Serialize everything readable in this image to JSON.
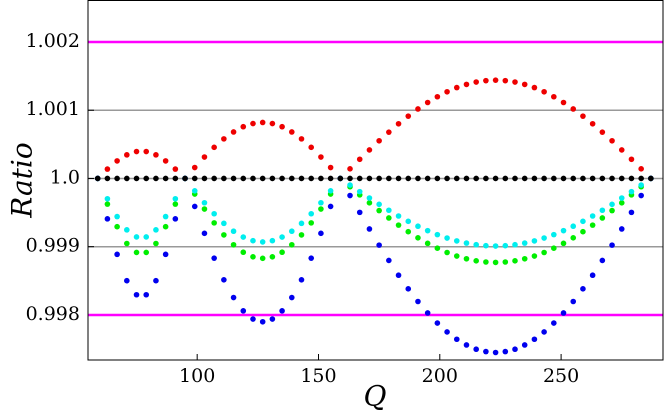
{
  "chart_data": {
    "type": "scatter",
    "xlabel": "Q",
    "ylabel": "Ratio",
    "xlim": [
      55,
      292
    ],
    "xticks": [
      100,
      150,
      200,
      250
    ],
    "ylim": [
      0.99734,
      1.0026
    ],
    "yticks": [
      1.002,
      1.001,
      {
        "value": 1,
        "label": "1.0"
      },
      0.999,
      0.998
    ],
    "grid": true,
    "grid_color": "#999999",
    "reference_lines": [
      {
        "value": 1.002,
        "color": "#ff00ff"
      },
      {
        "value": 0.998,
        "color": "#ff00ff"
      }
    ],
    "x": [
      59,
      63,
      67,
      71,
      75,
      79,
      83,
      87,
      91,
      95,
      99,
      103,
      107,
      111,
      115,
      119,
      123,
      127,
      131,
      135,
      139,
      143,
      147,
      151,
      155,
      159,
      163,
      167,
      171,
      175,
      179,
      183,
      187,
      191,
      195,
      199,
      203,
      207,
      211,
      215,
      219,
      223,
      227,
      231,
      235,
      239,
      243,
      247,
      251,
      255,
      259,
      263,
      267,
      271,
      275,
      279,
      283,
      287
    ],
    "series": [
      {
        "color": "#ee0000",
        "values": [
          1.0,
          1.000137,
          1.000257,
          1.000346,
          1.000394,
          1.000394,
          1.000346,
          1.000257,
          1.000137,
          1.0,
          1.00016,
          1.000314,
          1.000456,
          1.00058,
          1.000681,
          1.000758,
          1.000804,
          1.00082,
          1.000804,
          1.000758,
          1.000681,
          1.00058,
          1.000456,
          1.000314,
          1.00016,
          1.0,
          1.000141,
          1.000281,
          1.000418,
          1.000552,
          1.000678,
          1.000801,
          1.000913,
          1.001018,
          1.001113,
          1.001197,
          1.00127,
          1.001331,
          1.001378,
          1.001413,
          1.001433,
          1.00144,
          1.001433,
          1.001413,
          1.001378,
          1.001331,
          1.00127,
          1.001197,
          1.001113,
          1.001018,
          1.000913,
          1.000801,
          1.000678,
          1.000552,
          1.000418,
          1.000281,
          1.000141,
          1.0
        ]
      },
      {
        "color": "#00ee00",
        "values": [
          1.0,
          0.999624,
          0.999293,
          0.999047,
          0.998916,
          0.998916,
          0.999047,
          0.999293,
          0.999624,
          1.0,
          0.999772,
          0.999552,
          0.999349,
          0.999173,
          0.999028,
          0.998919,
          0.998852,
          0.99883,
          0.998852,
          0.998919,
          0.999028,
          0.999173,
          0.999349,
          0.999552,
          0.999772,
          1.0,
          0.999879,
          0.99976,
          0.999643,
          0.999529,
          0.999421,
          0.999316,
          0.99922,
          0.99913,
          0.999049,
          0.998978,
          0.998915,
          0.998863,
          0.998823,
          0.998793,
          0.998776,
          0.99877,
          0.998776,
          0.998793,
          0.998823,
          0.998863,
          0.998915,
          0.998978,
          0.999049,
          0.99913,
          0.99922,
          0.999316,
          0.999421,
          0.999529,
          0.999643,
          0.99976,
          0.999879,
          1.0
        ]
      },
      {
        "color": "#00eeee",
        "values": [
          1.0,
          0.999702,
          0.999441,
          0.999247,
          0.999143,
          0.999143,
          0.999247,
          0.999441,
          0.999702,
          1.0,
          0.999819,
          0.999644,
          0.999483,
          0.999342,
          0.999227,
          0.999141,
          0.999088,
          0.99907,
          0.999088,
          0.999141,
          0.999227,
          0.999342,
          0.999483,
          0.999644,
          0.999819,
          1.0,
          0.999903,
          0.999807,
          0.999713,
          0.999621,
          0.999534,
          0.99945,
          0.999372,
          0.9993,
          0.999235,
          0.999177,
          0.999127,
          0.999085,
          0.999053,
          0.999029,
          0.999015,
          0.99901,
          0.999015,
          0.999029,
          0.999053,
          0.999085,
          0.999127,
          0.999177,
          0.999235,
          0.9993,
          0.999372,
          0.99945,
          0.999534,
          0.999621,
          0.999713,
          0.999807,
          0.999903,
          1.0
        ]
      },
      {
        "color": "#0000ee",
        "values": [
          1.0,
          0.999408,
          0.998888,
          0.998502,
          0.998296,
          0.998296,
          0.998502,
          0.998888,
          0.999408,
          1.0,
          0.99959,
          0.999196,
          0.998832,
          0.998515,
          0.998255,
          0.99806,
          0.99794,
          0.9979,
          0.99794,
          0.99806,
          0.998255,
          0.998515,
          0.998832,
          0.999196,
          0.99959,
          1.0,
          0.99975,
          0.999503,
          0.99926,
          0.999023,
          0.998799,
          0.998582,
          0.998383,
          0.998197,
          0.998029,
          0.997881,
          0.997751,
          0.997644,
          0.99756,
          0.997498,
          0.997463,
          0.99745,
          0.997463,
          0.997498,
          0.99756,
          0.997644,
          0.997751,
          0.997881,
          0.998029,
          0.998197,
          0.998383,
          0.998582,
          0.998799,
          0.999023,
          0.99926,
          0.999503,
          0.99975,
          1.0
        ]
      },
      {
        "color": "#000000",
        "values": [
          1.0,
          1.0,
          1.0,
          1.0,
          1.0,
          1.0,
          1.0,
          1.0,
          1.0,
          1.0,
          1.0,
          1.0,
          1.0,
          1.0,
          1.0,
          1.0,
          1.0,
          1.0,
          1.0,
          1.0,
          1.0,
          1.0,
          1.0,
          1.0,
          1.0,
          1.0,
          1.0,
          1.0,
          1.0,
          1.0,
          1.0,
          1.0,
          1.0,
          1.0,
          1.0,
          1.0,
          1.0,
          1.0,
          1.0,
          1.0,
          1.0,
          1.0,
          1.0,
          1.0,
          1.0,
          1.0,
          1.0,
          1.0,
          1.0,
          1.0,
          1.0,
          1.0,
          1.0,
          1.0,
          1.0,
          1.0,
          1.0,
          1.0
        ]
      }
    ]
  }
}
